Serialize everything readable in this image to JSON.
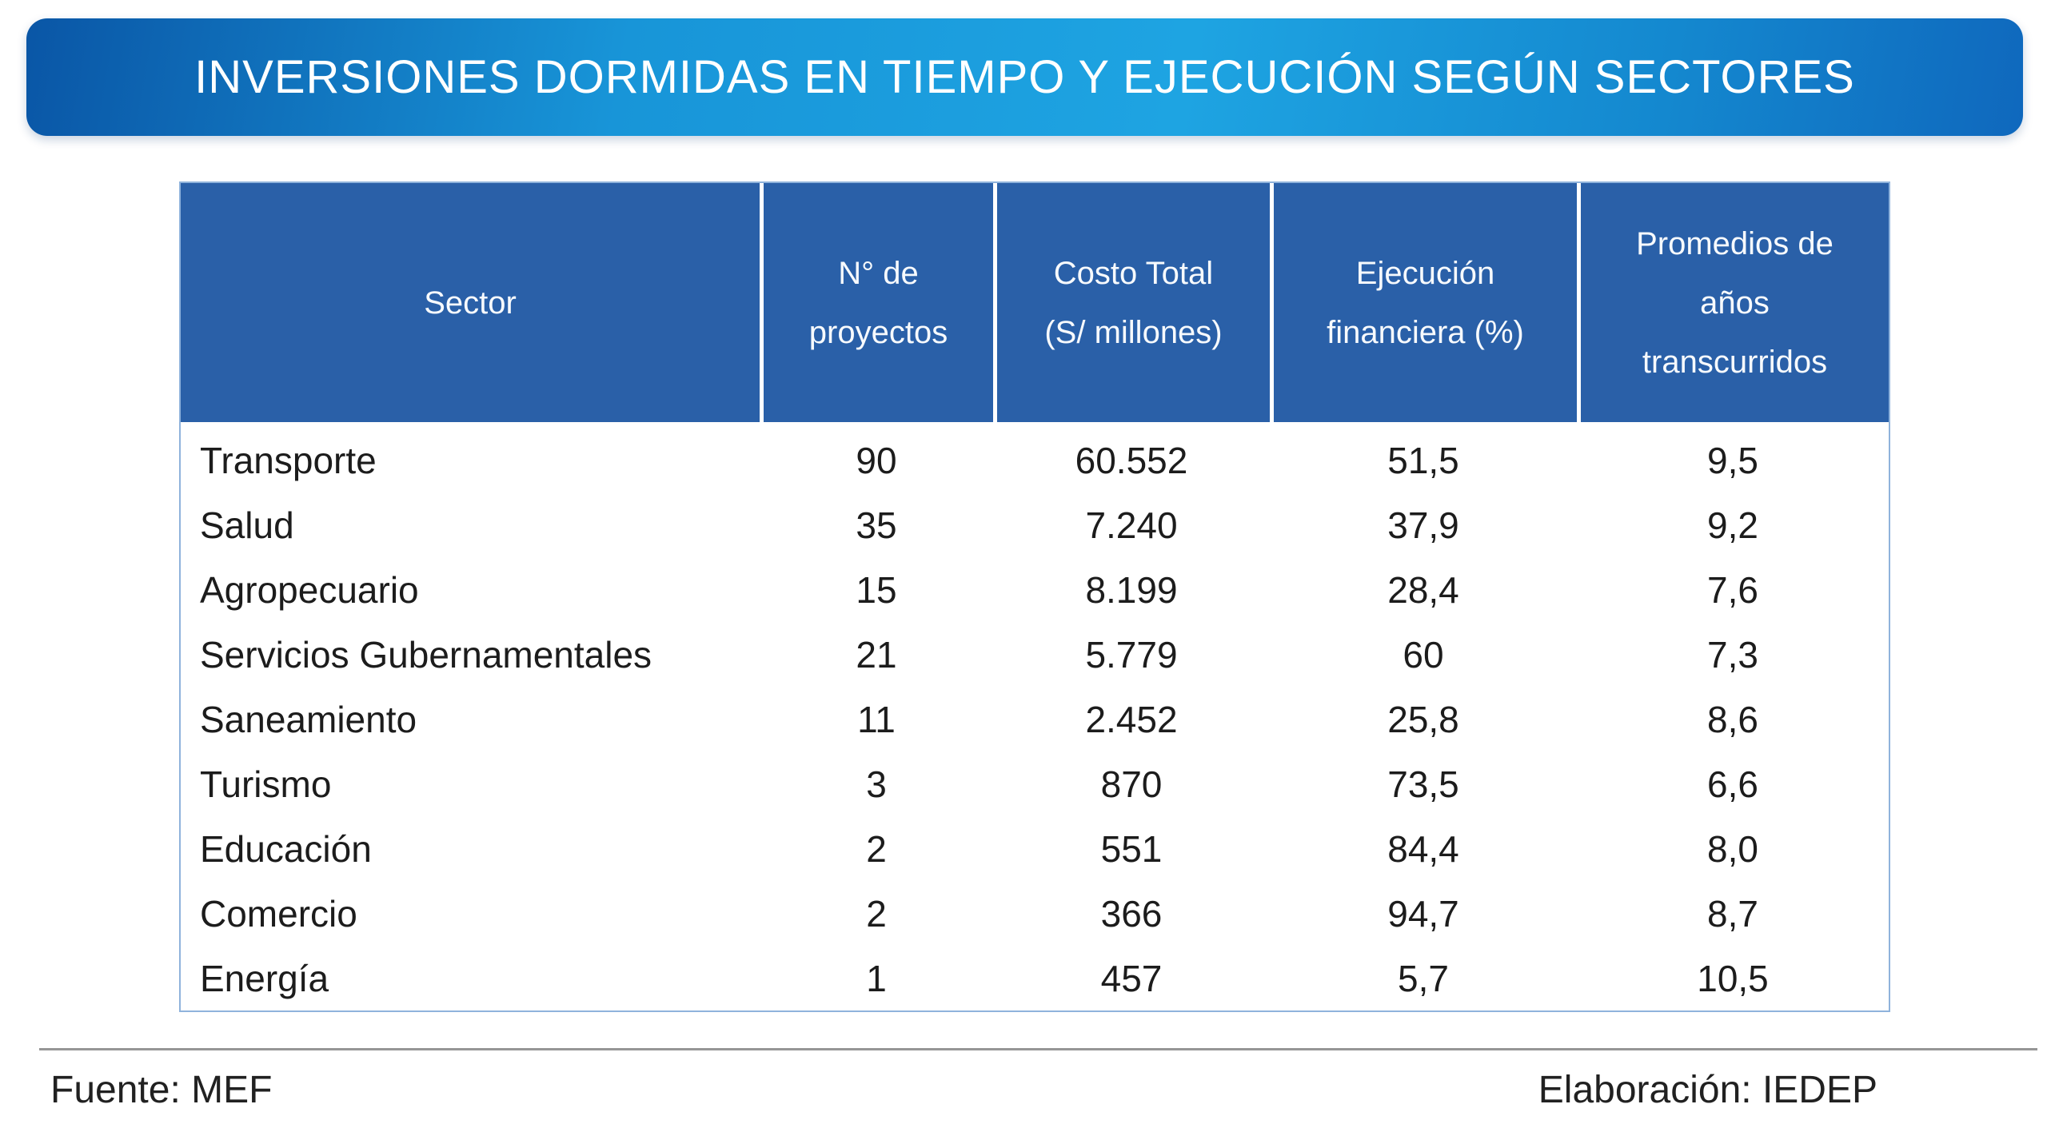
{
  "title": "INVERSIONES DORMIDAS EN TIEMPO Y EJECUCIÓN SEGÚN SECTORES",
  "colors": {
    "banner_gradient_left": "#0a56a6",
    "banner_gradient_mid": "#1ea4e2",
    "banner_gradient_right": "#0f68bd",
    "header_cell_blue": "#2a60a8",
    "table_border_blue": "#8fb3dc",
    "divider_gray": "#969696",
    "body_text": "#1c1c1c"
  },
  "table": {
    "headers": [
      {
        "text": "Sector"
      },
      {
        "text": "N° de\nproyectos"
      },
      {
        "text": "Costo Total\n(S/ millones)"
      },
      {
        "text": "Ejecución\nfinanciera (%)"
      },
      {
        "text": "Promedios de\naños\ntranscurridos"
      }
    ],
    "rows": [
      {
        "sector": "Transporte",
        "proyectos": "90",
        "costo": "60.552",
        "ejecucion": "51,5",
        "anios": "9,5"
      },
      {
        "sector": "Salud",
        "proyectos": "35",
        "costo": "7.240",
        "ejecucion": "37,9",
        "anios": "9,2"
      },
      {
        "sector": "Agropecuario",
        "proyectos": "15",
        "costo": "8.199",
        "ejecucion": "28,4",
        "anios": "7,6"
      },
      {
        "sector": "Servicios Gubernamentales",
        "proyectos": "21",
        "costo": "5.779",
        "ejecucion": "60",
        "anios": "7,3"
      },
      {
        "sector": "Saneamiento",
        "proyectos": "11",
        "costo": "2.452",
        "ejecucion": "25,8",
        "anios": "8,6"
      },
      {
        "sector": "Turismo",
        "proyectos": "3",
        "costo": "870",
        "ejecucion": "73,5",
        "anios": "6,6"
      },
      {
        "sector": "Educación",
        "proyectos": "2",
        "costo": "551",
        "ejecucion": "84,4",
        "anios": "8,0"
      },
      {
        "sector": "Comercio",
        "proyectos": "2",
        "costo": "366",
        "ejecucion": "94,7",
        "anios": "8,7"
      },
      {
        "sector": "Energía",
        "proyectos": "1",
        "costo": "457",
        "ejecucion": "5,7",
        "anios": "10,5"
      }
    ]
  },
  "footer": {
    "source": "Fuente: MEF",
    "elaboration": "Elaboración: IEDEP"
  },
  "chart_data": {
    "type": "table",
    "title": "INVERSIONES DORMIDAS EN TIEMPO Y EJECUCIÓN SEGÚN SECTORES",
    "columns": [
      "Sector",
      "N° de proyectos",
      "Costo Total (S/ millones)",
      "Ejecución financiera (%)",
      "Promedios de años transcurridos"
    ],
    "rows": [
      [
        "Transporte",
        90,
        60552,
        51.5,
        9.5
      ],
      [
        "Salud",
        35,
        7240,
        37.9,
        9.2
      ],
      [
        "Agropecuario",
        15,
        8199,
        28.4,
        7.6
      ],
      [
        "Servicios Gubernamentales",
        21,
        5779,
        60,
        7.3
      ],
      [
        "Saneamiento",
        11,
        2452,
        25.8,
        8.6
      ],
      [
        "Turismo",
        3,
        870,
        73.5,
        6.6
      ],
      [
        "Educación",
        2,
        551,
        84.4,
        8.0
      ],
      [
        "Comercio",
        2,
        366,
        94.7,
        8.7
      ],
      [
        "Energía",
        1,
        457,
        5.7,
        10.5
      ]
    ],
    "source": "Fuente: MEF",
    "elaboration": "Elaboración: IEDEP"
  }
}
